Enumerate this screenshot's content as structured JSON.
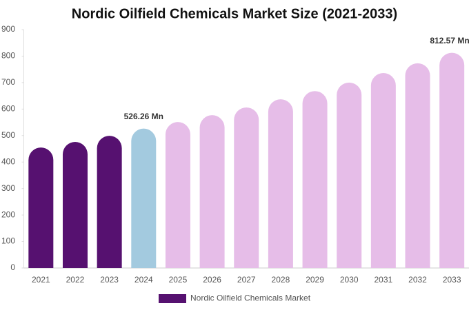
{
  "chart_data": {
    "type": "bar",
    "title": "Nordic Oilfield Chemicals Market Size (2021-2033)",
    "categories": [
      "2021",
      "2022",
      "2023",
      "2024",
      "2025",
      "2026",
      "2027",
      "2028",
      "2029",
      "2030",
      "2031",
      "2032",
      "2033"
    ],
    "series": [
      {
        "name": "Nordic Oilfield Chemicals Market",
        "color": "#561170",
        "values": [
          455,
          476,
          499,
          526.26,
          551,
          577,
          606,
          637,
          668,
          700,
          736,
          773,
          812.57
        ],
        "colors": [
          "#561170",
          "#561170",
          "#561170",
          "#a3cadf",
          "#e6bde8",
          "#e6bde8",
          "#e6bde8",
          "#e6bde8",
          "#e6bde8",
          "#e6bde8",
          "#e6bde8",
          "#e6bde8",
          "#e6bde8"
        ],
        "value_labels": [
          null,
          null,
          null,
          "526.26 Mn",
          null,
          null,
          null,
          null,
          null,
          null,
          null,
          null,
          "812.57 Mn"
        ]
      }
    ],
    "ylim": [
      0,
      900
    ],
    "yticks": [
      0,
      100,
      200,
      300,
      400,
      500,
      600,
      700,
      800,
      900
    ],
    "grid": false
  }
}
